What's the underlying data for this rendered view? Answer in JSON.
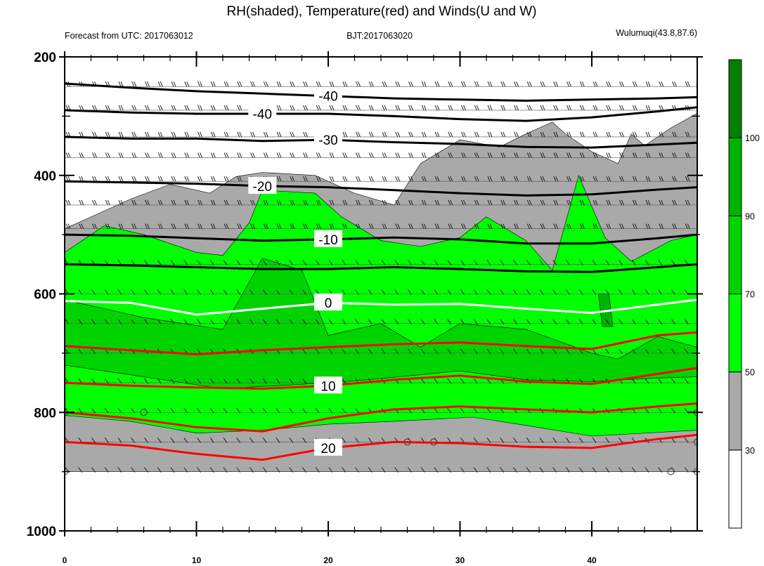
{
  "title": "RH(shaded), Temperature(red) and Winds(U and W)",
  "subtitle_left": "Forecast from UTC: 2017063012",
  "subtitle_center": "BJT:2017063020",
  "subtitle_right": "Wulumuqi(43.8,87.6)",
  "chart_data": {
    "type": "heatmap",
    "xlim": [
      0,
      48
    ],
    "ylim": [
      200,
      1000
    ],
    "y_ticks": [
      200,
      400,
      600,
      800,
      1000
    ],
    "x_ticks": [
      0,
      10,
      20,
      30,
      40
    ],
    "y_tick_labels": [
      "200",
      "400",
      "600",
      "800",
      "1000"
    ],
    "x_tick_labels": [
      "0",
      "10",
      "20",
      "30",
      "40"
    ],
    "rh_levels": [
      30,
      50,
      70,
      90,
      100
    ],
    "rh_colorbar_labels": [
      "30",
      "50",
      "70",
      "90",
      "100"
    ],
    "rh_colors": [
      "#ffffff",
      "#a9a9a9",
      "#00ff00",
      "#00d400",
      "#00b300",
      "#008000"
    ],
    "temperature_contours": [
      {
        "label": "-40",
        "color": "#000000",
        "points": [
          [
            0,
            245
          ],
          [
            5,
            252
          ],
          [
            10,
            258
          ],
          [
            15,
            262
          ],
          [
            20,
            266
          ],
          [
            25,
            270
          ],
          [
            30,
            272
          ],
          [
            35,
            274
          ],
          [
            40,
            272
          ],
          [
            45,
            270
          ],
          [
            48,
            268
          ]
        ]
      },
      {
        "label": "-40",
        "color": "#000000",
        "points": [
          [
            0,
            290
          ],
          [
            5,
            294
          ],
          [
            10,
            296
          ],
          [
            15,
            296
          ],
          [
            20,
            296
          ],
          [
            25,
            300
          ],
          [
            30,
            305
          ],
          [
            35,
            308
          ],
          [
            40,
            302
          ],
          [
            45,
            292
          ],
          [
            48,
            285
          ]
        ]
      },
      {
        "label": "-30",
        "color": "#000000",
        "points": [
          [
            0,
            335
          ],
          [
            5,
            338
          ],
          [
            10,
            338
          ],
          [
            15,
            342
          ],
          [
            20,
            340
          ],
          [
            25,
            344
          ],
          [
            30,
            347
          ],
          [
            35,
            352
          ],
          [
            40,
            353
          ],
          [
            45,
            348
          ],
          [
            48,
            345
          ]
        ]
      },
      {
        "label": "-20",
        "color": "#000000",
        "points": [
          [
            0,
            410
          ],
          [
            5,
            412
          ],
          [
            10,
            414
          ],
          [
            15,
            418
          ],
          [
            20,
            420
          ],
          [
            25,
            425
          ],
          [
            30,
            430
          ],
          [
            35,
            434
          ],
          [
            40,
            432
          ],
          [
            45,
            424
          ],
          [
            48,
            420
          ]
        ]
      },
      {
        "label": "-10",
        "color": "#000000",
        "points": [
          [
            0,
            500
          ],
          [
            5,
            502
          ],
          [
            10,
            506
          ],
          [
            15,
            510
          ],
          [
            20,
            508
          ],
          [
            25,
            505
          ],
          [
            30,
            508
          ],
          [
            35,
            515
          ],
          [
            40,
            515
          ],
          [
            45,
            506
          ],
          [
            48,
            500
          ]
        ]
      },
      {
        "label": "",
        "color": "#000000",
        "points": [
          [
            0,
            550
          ],
          [
            5,
            552
          ],
          [
            10,
            555
          ],
          [
            15,
            558
          ],
          [
            20,
            558
          ],
          [
            25,
            555
          ],
          [
            30,
            558
          ],
          [
            35,
            562
          ],
          [
            40,
            563
          ],
          [
            45,
            555
          ],
          [
            48,
            550
          ]
        ]
      },
      {
        "label": "0",
        "color": "#ffffff",
        "points": [
          [
            0,
            612
          ],
          [
            5,
            615
          ],
          [
            10,
            635
          ],
          [
            15,
            625
          ],
          [
            20,
            615
          ],
          [
            25,
            618
          ],
          [
            30,
            617
          ],
          [
            35,
            625
          ],
          [
            40,
            632
          ],
          [
            45,
            618
          ],
          [
            48,
            610
          ]
        ]
      },
      {
        "label": "",
        "color": "#ff0000",
        "points": [
          [
            0,
            688
          ],
          [
            5,
            695
          ],
          [
            10,
            702
          ],
          [
            15,
            695
          ],
          [
            20,
            690
          ],
          [
            25,
            685
          ],
          [
            30,
            682
          ],
          [
            35,
            688
          ],
          [
            40,
            693
          ],
          [
            45,
            670
          ],
          [
            48,
            665
          ]
        ]
      },
      {
        "label": "10",
        "color": "#ff0000",
        "points": [
          [
            0,
            750
          ],
          [
            5,
            755
          ],
          [
            10,
            758
          ],
          [
            15,
            760
          ],
          [
            20,
            755
          ],
          [
            25,
            745
          ],
          [
            30,
            738
          ],
          [
            35,
            748
          ],
          [
            40,
            752
          ],
          [
            45,
            735
          ],
          [
            48,
            725
          ]
        ]
      },
      {
        "label": "",
        "color": "#ff0000",
        "points": [
          [
            0,
            800
          ],
          [
            5,
            810
          ],
          [
            10,
            825
          ],
          [
            15,
            832
          ],
          [
            20,
            810
          ],
          [
            25,
            795
          ],
          [
            30,
            790
          ],
          [
            35,
            795
          ],
          [
            40,
            800
          ],
          [
            45,
            790
          ],
          [
            48,
            785
          ]
        ]
      },
      {
        "label": "20",
        "color": "#ff0000",
        "points": [
          [
            0,
            850
          ],
          [
            5,
            856
          ],
          [
            10,
            870
          ],
          [
            15,
            880
          ],
          [
            20,
            860
          ],
          [
            25,
            850
          ],
          [
            30,
            852
          ],
          [
            35,
            858
          ],
          [
            40,
            860
          ],
          [
            45,
            845
          ],
          [
            48,
            838
          ]
        ]
      }
    ],
    "rh_shaded_regions": [
      {
        "level": 30,
        "points": [
          [
            0,
            490
          ],
          [
            3,
            460
          ],
          [
            5,
            440
          ],
          [
            8,
            415
          ],
          [
            11,
            430
          ],
          [
            13,
            402
          ],
          [
            15,
            395
          ],
          [
            19,
            400
          ],
          [
            22,
            430
          ],
          [
            25,
            450
          ],
          [
            27,
            380
          ],
          [
            30,
            340
          ],
          [
            33,
            352
          ],
          [
            35,
            330
          ],
          [
            37,
            310
          ],
          [
            38,
            330
          ],
          [
            40,
            360
          ],
          [
            42,
            380
          ],
          [
            43,
            330
          ],
          [
            44,
            350
          ],
          [
            46,
            320
          ],
          [
            48,
            295
          ],
          [
            48,
            900
          ],
          [
            0,
            900
          ]
        ]
      },
      {
        "level": 50,
        "points": [
          [
            0,
            530
          ],
          [
            3,
            485
          ],
          [
            6,
            500
          ],
          [
            8,
            515
          ],
          [
            10,
            530
          ],
          [
            12,
            535
          ],
          [
            14,
            480
          ],
          [
            15,
            425
          ],
          [
            19,
            430
          ],
          [
            21,
            470
          ],
          [
            24,
            510
          ],
          [
            27,
            520
          ],
          [
            30,
            505
          ],
          [
            32,
            470
          ],
          [
            35,
            510
          ],
          [
            37,
            560
          ],
          [
            39,
            400
          ],
          [
            41,
            505
          ],
          [
            43,
            545
          ],
          [
            46,
            510
          ],
          [
            48,
            500
          ],
          [
            48,
            830
          ],
          [
            40,
            840
          ],
          [
            35,
            822
          ],
          [
            31,
            808
          ],
          [
            25,
            815
          ],
          [
            20,
            820
          ],
          [
            15,
            830
          ],
          [
            10,
            835
          ],
          [
            5,
            815
          ],
          [
            0,
            805
          ]
        ]
      },
      {
        "level": 70,
        "points": [
          [
            0,
            610
          ],
          [
            6,
            640
          ],
          [
            12,
            660
          ],
          [
            15,
            540
          ],
          [
            18,
            560
          ],
          [
            20,
            670
          ],
          [
            24,
            650
          ],
          [
            27,
            690
          ],
          [
            30,
            650
          ],
          [
            35,
            660
          ],
          [
            40,
            700
          ],
          [
            42,
            710
          ],
          [
            45,
            672
          ],
          [
            48,
            690
          ],
          [
            48,
            740
          ],
          [
            45,
            742
          ],
          [
            40,
            748
          ],
          [
            35,
            745
          ],
          [
            30,
            730
          ],
          [
            23,
            745
          ],
          [
            20,
            750
          ],
          [
            12,
            760
          ],
          [
            6,
            740
          ],
          [
            0,
            720
          ]
        ]
      },
      {
        "level": 90,
        "points": [
          [
            40.5,
            600
          ],
          [
            41.3,
            600
          ],
          [
            41.6,
            655
          ],
          [
            40.8,
            655
          ]
        ]
      }
    ],
    "wind_levels": [
      250,
      290,
      335,
      370,
      410,
      450,
      490,
      550,
      600,
      650,
      700,
      750,
      800,
      850,
      900
    ],
    "station_markers": [
      [
        0,
        800
      ],
      [
        6,
        800
      ],
      [
        26,
        850
      ],
      [
        28,
        850
      ],
      [
        48,
        800
      ],
      [
        48,
        850
      ],
      [
        0,
        900
      ],
      [
        46,
        900
      ],
      [
        48,
        900
      ]
    ]
  }
}
